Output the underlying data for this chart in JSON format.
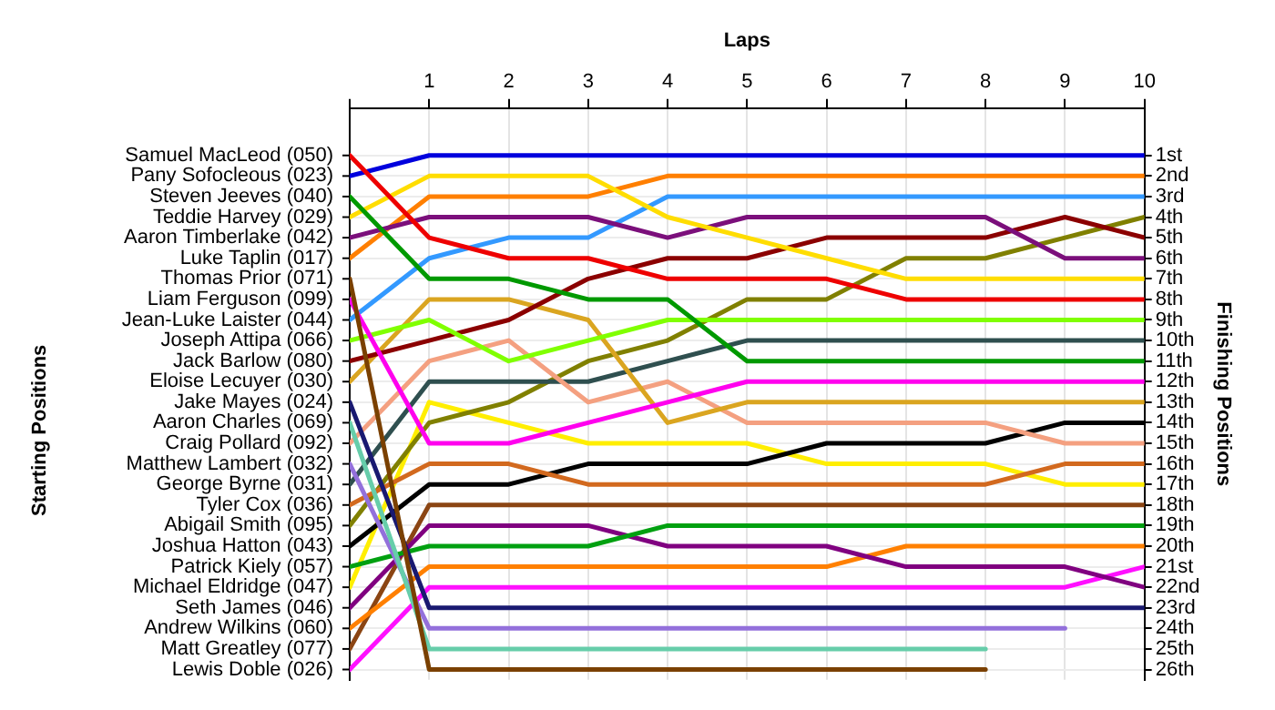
{
  "chart_data": {
    "type": "line",
    "xlabel": "Laps",
    "ylabel": "Finishing Positions",
    "x": [
      0,
      1,
      2,
      3,
      4,
      5,
      6,
      7,
      8,
      9,
      10
    ],
    "xlim": [
      0,
      10
    ],
    "xticks": [
      1,
      2,
      3,
      4,
      5,
      6,
      7,
      8,
      9,
      10
    ],
    "ylim": [
      26.5,
      -1.3
    ],
    "yticks": [
      {
        "value": 1,
        "label": "1st"
      },
      {
        "value": 2,
        "label": "2nd"
      },
      {
        "value": 3,
        "label": "3rd"
      },
      {
        "value": 4,
        "label": "4th"
      },
      {
        "value": 5,
        "label": "5th"
      },
      {
        "value": 6,
        "label": "6th"
      },
      {
        "value": 7,
        "label": "7th"
      },
      {
        "value": 8,
        "label": "8th"
      },
      {
        "value": 9,
        "label": "9th"
      },
      {
        "value": 10,
        "label": "10th"
      },
      {
        "value": 11,
        "label": "11th"
      },
      {
        "value": 12,
        "label": "12th"
      },
      {
        "value": 13,
        "label": "13th"
      },
      {
        "value": 14,
        "label": "14th"
      },
      {
        "value": 15,
        "label": "15th"
      },
      {
        "value": 16,
        "label": "16th"
      },
      {
        "value": 17,
        "label": "17th"
      },
      {
        "value": 18,
        "label": "18th"
      },
      {
        "value": 19,
        "label": "19th"
      },
      {
        "value": 20,
        "label": "20th"
      },
      {
        "value": 21,
        "label": "21st"
      },
      {
        "value": 22,
        "label": "22nd"
      },
      {
        "value": 23,
        "label": "23rd"
      },
      {
        "value": 24,
        "label": "24th"
      },
      {
        "value": 25,
        "label": "25th"
      },
      {
        "value": 26,
        "label": "26th"
      }
    ],
    "annotations": [
      "Starting Positions",
      "Samuel MacLeod (050)",
      "Pany Sofocleous (023)",
      "Steven Jeeves (040)",
      "Teddie Harvey (029)",
      "Aaron Timberlake (042)",
      "Luke Taplin (017)",
      "Thomas Prior (071)",
      "Liam Ferguson (099)",
      "Jean-Luke Laister (044)",
      "Joseph Attipa (066)",
      "Jack Barlow (080)",
      "Eloise Lecuyer (030)",
      "Jake Mayes (024)",
      "Aaron Charles (069)",
      "Craig Pollard (092)",
      "Matthew Lambert (032)",
      "George Byrne (031)",
      "Tyler Cox (036)",
      "Abigail Smith (095)",
      "Joshua Hatton (043)",
      "Patrick Kiely (057)",
      "Michael Eldridge (047)",
      "Seth James (046)",
      "Andrew Wilkins (060)",
      "Matt Greatley (077)",
      "Lewis Doble (026)"
    ],
    "grid": true,
    "legend": false,
    "marker": "none",
    "line_style": "solid",
    "series": [
      {
        "color": "#ee0000",
        "values": [
          1,
          5,
          6,
          6,
          7,
          7,
          7,
          8,
          8,
          8,
          8
        ]
      },
      {
        "color": "#0000dd",
        "values": [
          2,
          1,
          1,
          1,
          1,
          1,
          1,
          1,
          1,
          1,
          1
        ]
      },
      {
        "color": "#009900",
        "values": [
          3,
          7,
          7,
          8,
          8,
          11,
          11,
          11,
          11,
          11,
          11
        ]
      },
      {
        "color": "#ffdd00",
        "values": [
          4,
          2,
          2,
          2,
          4,
          5,
          6,
          7,
          7,
          7,
          7
        ]
      },
      {
        "color": "#7b0f7b",
        "values": [
          5,
          4,
          4,
          4,
          5,
          4,
          4,
          4,
          4,
          6,
          6
        ]
      },
      {
        "color": "#ff7f00",
        "values": [
          6,
          3,
          3,
          3,
          2,
          2,
          2,
          2,
          2,
          2,
          2
        ]
      },
      {
        "color": "#7a4000",
        "values": [
          7,
          26,
          26,
          26,
          26,
          26,
          26,
          26,
          26,
          null,
          null
        ]
      },
      {
        "color": "#ff00ee",
        "values": [
          8,
          15,
          15,
          14,
          13,
          12,
          12,
          12,
          12,
          12,
          12
        ]
      },
      {
        "color": "#3399ff",
        "values": [
          9,
          6,
          5,
          5,
          3,
          3,
          3,
          3,
          3,
          3,
          3
        ]
      },
      {
        "color": "#80ff00",
        "values": [
          10,
          9,
          11,
          10,
          9,
          9,
          9,
          9,
          9,
          9,
          9
        ]
      },
      {
        "color": "#8b0000",
        "values": [
          11,
          10,
          9,
          7,
          6,
          6,
          5,
          5,
          5,
          4,
          5
        ]
      },
      {
        "color": "#daa520",
        "values": [
          12,
          8,
          8,
          9,
          14,
          13,
          13,
          13,
          13,
          13,
          13
        ]
      },
      {
        "color": "#191970",
        "values": [
          13,
          23,
          23,
          23,
          23,
          23,
          23,
          23,
          23,
          23,
          23
        ]
      },
      {
        "color": "#66cdaa",
        "values": [
          14,
          25,
          25,
          25,
          25,
          25,
          25,
          25,
          25,
          null,
          null
        ]
      },
      {
        "color": "#f4a080",
        "values": [
          15,
          11,
          10,
          13,
          12,
          14,
          14,
          14,
          14,
          15,
          15
        ]
      },
      {
        "color": "#9370db",
        "values": [
          16,
          24,
          24,
          24,
          24,
          24,
          24,
          24,
          24,
          24,
          null
        ]
      },
      {
        "color": "#2f4f4f",
        "values": [
          17,
          12,
          12,
          12,
          11,
          10,
          10,
          10,
          10,
          10,
          10
        ]
      },
      {
        "color": "#d2691e",
        "values": [
          18,
          16,
          16,
          17,
          17,
          17,
          17,
          17,
          17,
          16,
          16
        ]
      },
      {
        "color": "#808000",
        "values": [
          19,
          14,
          13,
          11,
          10,
          8,
          8,
          6,
          6,
          5,
          4
        ]
      },
      {
        "color": "#000000",
        "values": [
          20,
          17,
          17,
          16,
          16,
          16,
          15,
          15,
          15,
          14,
          14
        ]
      },
      {
        "color": "#00a010",
        "values": [
          21,
          20,
          20,
          20,
          19,
          19,
          19,
          19,
          19,
          19,
          19
        ]
      },
      {
        "color": "#ffee00",
        "values": [
          22,
          13,
          14,
          15,
          15,
          15,
          16,
          16,
          16,
          17,
          17
        ]
      },
      {
        "color": "#800080",
        "values": [
          23,
          19,
          19,
          19,
          20,
          20,
          20,
          21,
          21,
          21,
          22
        ]
      },
      {
        "color": "#ff8000",
        "values": [
          24,
          21,
          21,
          21,
          21,
          21,
          21,
          20,
          20,
          20,
          20
        ]
      },
      {
        "color": "#8b4513",
        "values": [
          25,
          18,
          18,
          18,
          18,
          18,
          18,
          18,
          18,
          18,
          18
        ]
      },
      {
        "color": "#ff10ff",
        "values": [
          26,
          22,
          22,
          22,
          22,
          22,
          22,
          22,
          22,
          22,
          21
        ]
      }
    ]
  }
}
